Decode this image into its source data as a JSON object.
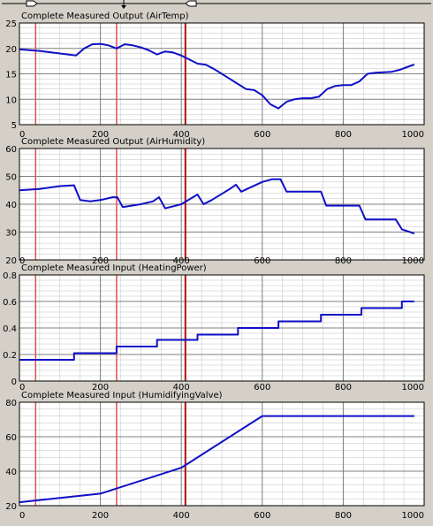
{
  "colors": {
    "background": "#d4d0c8",
    "plot_bg": "#ffffff",
    "grid_major": "#808080",
    "grid_minor": "#c0c0c0",
    "series": "#1010c8",
    "marker_light": "#e05050",
    "marker_dark": "#b01010",
    "text": "#000000"
  },
  "markers": {
    "light": [
      40,
      240
    ],
    "dark": [
      410
    ]
  },
  "chart_data": [
    {
      "type": "line",
      "title": "Complete Measured Output (AirTemp)",
      "xlim": [
        0,
        1000
      ],
      "ylim": [
        5,
        25
      ],
      "xticks": [
        0,
        200,
        400,
        600,
        800,
        1000
      ],
      "yticks": [
        5,
        10,
        15,
        20,
        25
      ],
      "xticklabels": [
        "0",
        "200",
        "400",
        "600",
        "800",
        "1000"
      ],
      "yticklabels": [
        "5",
        "10",
        "15",
        "20",
        "25"
      ],
      "grid": true,
      "series": [
        {
          "x": [
            0,
            50,
            100,
            140,
            160,
            180,
            200,
            220,
            240,
            260,
            280,
            300,
            320,
            340,
            360,
            380,
            400,
            420,
            440,
            460,
            480,
            500,
            520,
            540,
            560,
            580,
            600,
            620,
            640,
            660,
            680,
            700,
            720,
            740,
            760,
            780,
            800,
            820,
            840,
            860,
            880,
            900,
            920,
            940,
            960,
            975
          ],
          "y": [
            19.8,
            19.5,
            19.0,
            18.6,
            20.0,
            20.8,
            20.9,
            20.6,
            20.0,
            20.8,
            20.6,
            20.2,
            19.6,
            18.8,
            19.4,
            19.2,
            18.6,
            17.8,
            17.0,
            16.8,
            16.0,
            15.0,
            14.0,
            13.0,
            12.0,
            11.8,
            10.8,
            9.0,
            8.2,
            9.5,
            10.0,
            10.2,
            10.2,
            10.5,
            12.0,
            12.6,
            12.8,
            12.8,
            13.5,
            15.0,
            15.2,
            15.3,
            15.4,
            15.8,
            16.4,
            16.8
          ]
        }
      ]
    },
    {
      "type": "line",
      "title": "Complete Measured Output (AirHumidity)",
      "xlim": [
        0,
        1000
      ],
      "ylim": [
        20,
        60
      ],
      "xticks": [
        0,
        200,
        400,
        600,
        800,
        1000
      ],
      "yticks": [
        20,
        30,
        40,
        50,
        60
      ],
      "xticklabels": [
        "0",
        "200",
        "400",
        "600",
        "800",
        "1000"
      ],
      "yticklabels": [
        "20",
        "30",
        "40",
        "50",
        "60"
      ],
      "grid": true,
      "series": [
        {
          "x": [
            0,
            50,
            100,
            135,
            150,
            175,
            200,
            230,
            242,
            255,
            300,
            330,
            345,
            360,
            400,
            440,
            455,
            475,
            520,
            535,
            548,
            600,
            625,
            645,
            660,
            700,
            745,
            758,
            800,
            840,
            855,
            900,
            930,
            945,
            965,
            975
          ],
          "y": [
            45,
            45.5,
            46.5,
            46.8,
            41.5,
            41.0,
            41.5,
            42.5,
            42.5,
            39.0,
            40.0,
            41.0,
            42.5,
            38.5,
            40.0,
            43.5,
            40.0,
            41.5,
            45.5,
            47.0,
            44.5,
            48.0,
            49.0,
            49.0,
            44.5,
            44.5,
            44.5,
            39.5,
            39.5,
            39.5,
            34.5,
            34.5,
            34.5,
            31.0,
            30.0,
            29.5
          ]
        }
      ]
    },
    {
      "type": "line",
      "title": "Complete Measured Input (HeatingPower)",
      "xlim": [
        0,
        1000
      ],
      "ylim": [
        0,
        0.8
      ],
      "xticks": [
        0,
        200,
        400,
        600,
        800,
        1000
      ],
      "yticks": [
        0,
        0.2,
        0.4,
        0.6,
        0.8
      ],
      "xticklabels": [
        "0",
        "200",
        "400",
        "600",
        "800",
        "1000"
      ],
      "yticklabels": [
        "0",
        "0.2",
        "0.4",
        "0.6",
        "0.8"
      ],
      "grid": true,
      "series": [
        {
          "x": [
            0,
            135,
            135,
            240,
            240,
            340,
            340,
            440,
            440,
            540,
            540,
            640,
            640,
            745,
            745,
            845,
            845,
            945,
            945,
            975
          ],
          "y": [
            0.16,
            0.16,
            0.21,
            0.21,
            0.26,
            0.26,
            0.31,
            0.31,
            0.35,
            0.35,
            0.4,
            0.4,
            0.45,
            0.45,
            0.5,
            0.5,
            0.55,
            0.55,
            0.6,
            0.6
          ]
        }
      ]
    },
    {
      "type": "line",
      "title": "Complete Measured Input (HumidifyingValve)",
      "xlim": [
        0,
        1000
      ],
      "ylim": [
        20,
        80
      ],
      "xticks": [
        0,
        200,
        400,
        600,
        800,
        1000
      ],
      "yticks": [
        20,
        40,
        60,
        80
      ],
      "xticklabels": [
        "0",
        "200",
        "400",
        "600",
        "800",
        "1000"
      ],
      "yticklabels": [
        "20",
        "40",
        "60",
        "80"
      ],
      "grid": true,
      "series": [
        {
          "x": [
            0,
            200,
            400,
            600,
            975
          ],
          "y": [
            22,
            27,
            42,
            72,
            72
          ]
        }
      ]
    }
  ]
}
